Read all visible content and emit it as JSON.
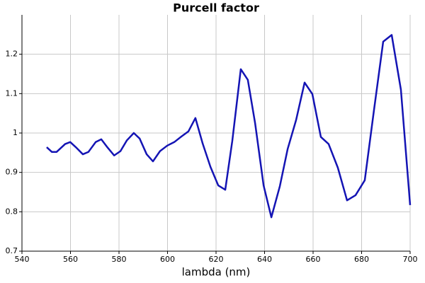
{
  "chart_data": {
    "type": "line",
    "title": "Purcell factor",
    "x_label": "lambda (nm)",
    "x": [
      550.2,
      552.3,
      554.3,
      557.8,
      559.9,
      562.2,
      565.1,
      567.4,
      570.4,
      572.7,
      575.3,
      578,
      580.6,
      583.2,
      586.1,
      588.5,
      591.4,
      594,
      596.9,
      599.9,
      602.8,
      605.7,
      608.6,
      611.5,
      614.5,
      617.7,
      620.9,
      623.8,
      626.7,
      630.2,
      633.1,
      636.1,
      639.6,
      642.8,
      646.3,
      649.5,
      653,
      656.5,
      659.7,
      663.2,
      666.4,
      670.2,
      674,
      677.5,
      681.3,
      685.1,
      688.9,
      692.4,
      696.2,
      700
    ],
    "series": [
      {
        "name": "Purcell factor",
        "color": "#1414b4",
        "values": [
          0.964,
          0.952,
          0.952,
          0.972,
          0.977,
          0.964,
          0.946,
          0.952,
          0.977,
          0.984,
          0.963,
          0.943,
          0.954,
          0.981,
          1.0,
          0.986,
          0.946,
          0.928,
          0.954,
          0.968,
          0.977,
          0.991,
          1.004,
          1.038,
          0.973,
          0.914,
          0.867,
          0.856,
          0.98,
          1.162,
          1.135,
          1.025,
          0.867,
          0.786,
          0.865,
          0.959,
          1.033,
          1.128,
          1.099,
          0.99,
          0.972,
          0.912,
          0.829,
          0.842,
          0.88,
          1.058,
          1.232,
          1.249,
          1.11,
          0.817
        ]
      }
    ],
    "xlim": [
      540,
      700
    ],
    "xticks": [
      540,
      560,
      580,
      600,
      620,
      640,
      660,
      680,
      700
    ],
    "ylim": [
      0.7,
      1.3
    ],
    "yticks": [
      0.7,
      0.8,
      0.9,
      1,
      1.1,
      1.2
    ],
    "grid": true
  }
}
